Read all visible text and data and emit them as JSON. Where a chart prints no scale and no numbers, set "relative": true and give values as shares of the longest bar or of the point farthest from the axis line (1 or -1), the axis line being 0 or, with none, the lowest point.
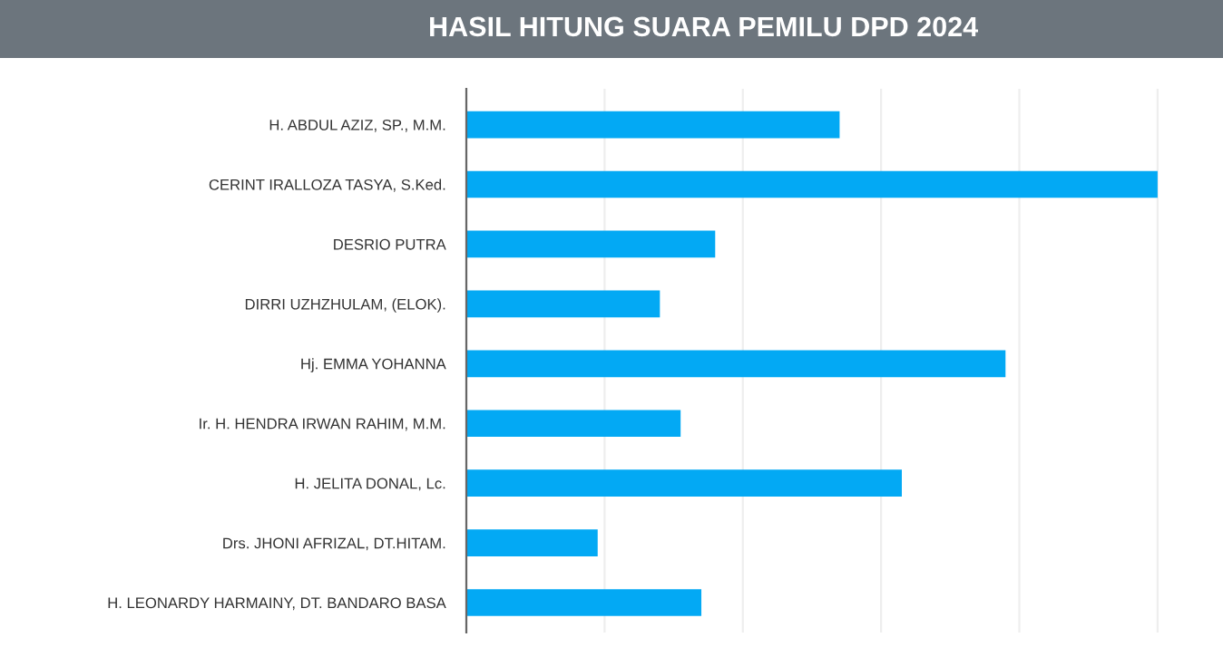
{
  "chart_data": {
    "type": "bar",
    "orientation": "horizontal",
    "relative": true,
    "title": "HASIL HITUNG SUARA PEMILU DPD 2024",
    "categories": [
      "H. ABDUL AZIZ, SP., M.M.",
      "CERINT IRALLOZA TASYA, S.Ked.",
      "DESRIO PUTRA",
      "DIRRI UZHZHULAM, (ELOK).",
      "Hj. EMMA YOHANNA",
      "Ir. H. HENDRA IRWAN RAHIM, M.M.",
      "H. JELITA DONAL, Lc.",
      "Drs. JHONI AFRIZAL, DT.HITAM.",
      "H. LEONARDY HARMAINY, DT. BANDARO BASA"
    ],
    "values": [
      0.54,
      1,
      0.36,
      0.28,
      0.78,
      0.31,
      0.63,
      0.19,
      0.34
    ],
    "color": "#03a9f4",
    "grid": "x"
  }
}
